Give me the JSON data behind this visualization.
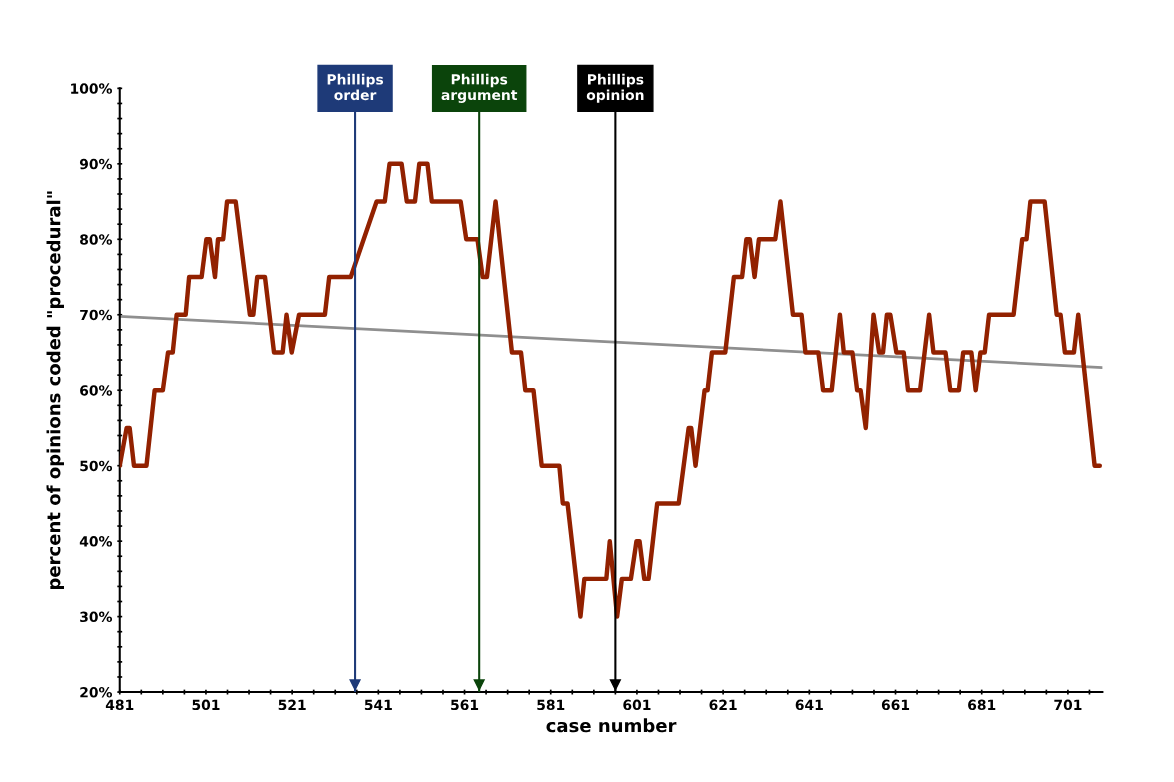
{
  "chart_data": {
    "type": "line",
    "xlabel": "case number",
    "ylabel": "percent of opinions coded \"procedural\"",
    "xlim": [
      481,
      709
    ],
    "ylim": [
      20,
      100
    ],
    "xticks": [
      481,
      {
        "value": 486,
        "label": null
      },
      {
        "value": 491,
        "label": null
      },
      {
        "value": 496,
        "label": null
      },
      501,
      {
        "value": 506,
        "label": null
      },
      {
        "value": 511,
        "label": null
      },
      {
        "value": 516,
        "label": null
      },
      521,
      {
        "value": 526,
        "label": null
      },
      {
        "value": 531,
        "label": null
      },
      {
        "value": 536,
        "label": null
      },
      541,
      {
        "value": 546,
        "label": null
      },
      {
        "value": 551,
        "label": null
      },
      {
        "value": 556,
        "label": null
      },
      561,
      {
        "value": 566,
        "label": null
      },
      {
        "value": 571,
        "label": null
      },
      {
        "value": 576,
        "label": null
      },
      581,
      {
        "value": 586,
        "label": null
      },
      {
        "value": 591,
        "label": null
      },
      {
        "value": 596,
        "label": null
      },
      601,
      {
        "value": 606,
        "label": null
      },
      {
        "value": 611,
        "label": null
      },
      {
        "value": 616,
        "label": null
      },
      621,
      {
        "value": 626,
        "label": null
      },
      {
        "value": 631,
        "label": null
      },
      {
        "value": 636,
        "label": null
      },
      641,
      {
        "value": 646,
        "label": null
      },
      {
        "value": 651,
        "label": null
      },
      {
        "value": 656,
        "label": null
      },
      661,
      {
        "value": 666,
        "label": null
      },
      {
        "value": 671,
        "label": null
      },
      {
        "value": 676,
        "label": null
      },
      681,
      {
        "value": 686,
        "label": null
      },
      {
        "value": 691,
        "label": null
      },
      {
        "value": 696,
        "label": null
      },
      701,
      {
        "value": 706,
        "label": null
      }
    ],
    "yticks": [
      {
        "value": 20,
        "label": "20%"
      },
      {
        "value": 22,
        "label": null
      },
      {
        "value": 24,
        "label": null
      },
      {
        "value": 26,
        "label": null
      },
      {
        "value": 28,
        "label": null
      },
      {
        "value": 30,
        "label": "30%"
      },
      {
        "value": 32,
        "label": null
      },
      {
        "value": 34,
        "label": null
      },
      {
        "value": 36,
        "label": null
      },
      {
        "value": 38,
        "label": null
      },
      {
        "value": 40,
        "label": "40%"
      },
      {
        "value": 42,
        "label": null
      },
      {
        "value": 44,
        "label": null
      },
      {
        "value": 46,
        "label": null
      },
      {
        "value": 48,
        "label": null
      },
      {
        "value": 50,
        "label": "50%"
      },
      {
        "value": 52,
        "label": null
      },
      {
        "value": 54,
        "label": null
      },
      {
        "value": 56,
        "label": null
      },
      {
        "value": 58,
        "label": null
      },
      {
        "value": 60,
        "label": "60%"
      },
      {
        "value": 62,
        "label": null
      },
      {
        "value": 64,
        "label": null
      },
      {
        "value": 66,
        "label": null
      },
      {
        "value": 68,
        "label": null
      },
      {
        "value": 70,
        "label": "70%"
      },
      {
        "value": 72,
        "label": null
      },
      {
        "value": 74,
        "label": null
      },
      {
        "value": 76,
        "label": null
      },
      {
        "value": 78,
        "label": null
      },
      {
        "value": 80,
        "label": "80%"
      },
      {
        "value": 82,
        "label": null
      },
      {
        "value": 84,
        "label": null
      },
      {
        "value": 86,
        "label": null
      },
      {
        "value": 88,
        "label": null
      },
      {
        "value": 90,
        "label": "90%"
      },
      {
        "value": 92,
        "label": null
      },
      {
        "value": 94,
        "label": null
      },
      {
        "value": 96,
        "label": null
      },
      {
        "value": 98,
        "label": null
      },
      {
        "value": 100,
        "label": "100%"
      }
    ],
    "grid": false,
    "legend": false,
    "marker": "none",
    "line_style": "solid",
    "series": [
      {
        "color": "#922100",
        "x": [
          481,
          482.6,
          483.3,
          484.3,
          487.2,
          489.1,
          491,
          492.2,
          493.3,
          494.2,
          496.3,
          497.1,
          500,
          501.1,
          501.9,
          503.1,
          503.8,
          505,
          505.9,
          507.9,
          511.2,
          512,
          512.9,
          514.7,
          516.8,
          518.8,
          519.7,
          520.9,
          522.6,
          528.6,
          529.6,
          534.6,
          540.6,
          542.5,
          543.6,
          546.4,
          547.6,
          549.5,
          550.5,
          552.4,
          553.4,
          560.1,
          561.4,
          564,
          565.2,
          566.2,
          568.2,
          572,
          574.1,
          575.1,
          577,
          578.9,
          583,
          583.8,
          584.9,
          587.9,
          588.8,
          593.9,
          594.7,
          596.4,
          597.5,
          599.6,
          600.9,
          601.6,
          602.7,
          603.7,
          605.7,
          610.7,
          613,
          613.6,
          614.6,
          616.7,
          617.4,
          618.4,
          621.5,
          623.5,
          625.4,
          626.4,
          627.2,
          628.3,
          629.3,
          633.1,
          634.3,
          637.2,
          639.2,
          640.1,
          643.1,
          644.2,
          646.2,
          648.1,
          649,
          651,
          652.1,
          652.9,
          654.1,
          655.9,
          657.2,
          658.1,
          659,
          659.8,
          661.2,
          662.9,
          663.9,
          666.7,
          668.8,
          669.8,
          672.6,
          673.7,
          675.7,
          676.7,
          678.6,
          679.6,
          680.7,
          681.7,
          682.7,
          688.4,
          690.4,
          691.4,
          692.3,
          695.6,
          698.4,
          699.3,
          700.3,
          702.4,
          703.4,
          707.2,
          708.4
        ],
        "values": [
          50,
          55,
          55,
          50,
          50,
          60,
          60,
          65,
          65,
          70,
          70,
          75,
          75,
          80,
          80,
          75,
          80,
          80,
          85,
          85,
          70,
          70,
          75,
          75,
          65,
          65,
          70,
          65,
          70,
          70,
          75,
          75,
          85,
          85,
          90,
          90,
          85,
          85,
          90,
          90,
          85,
          85,
          80,
          80,
          75,
          75,
          85,
          65,
          65,
          60,
          60,
          50,
          50,
          45,
          45,
          30,
          35,
          35,
          40,
          30,
          35,
          35,
          40,
          40,
          35,
          35,
          45,
          45,
          55,
          55,
          50,
          60,
          60,
          65,
          65,
          75,
          75,
          80,
          80,
          75,
          80,
          80,
          85,
          70,
          70,
          65,
          65,
          60,
          60,
          70,
          65,
          65,
          60,
          60,
          55,
          70,
          65,
          65,
          70,
          70,
          65,
          65,
          60,
          60,
          70,
          65,
          65,
          60,
          60,
          65,
          65,
          60,
          65,
          65,
          70,
          70,
          80,
          80,
          85,
          85,
          70,
          70,
          65,
          65,
          70,
          50,
          50
        ]
      },
      {
        "color": "#8f8f8f",
        "x": [
          481,
          709
        ],
        "values": [
          69.8,
          63.0
        ]
      }
    ],
    "ref_lines": [
      {
        "axis": "x",
        "value": 535.6,
        "label": "Phillips\norder",
        "color": "#1e3a78"
      },
      {
        "axis": "x",
        "value": 564.4,
        "label": "Phillips\nargument",
        "color": "#0b440b"
      },
      {
        "axis": "x",
        "value": 596,
        "label": "Phillips\nopinion",
        "color": "#000000"
      }
    ]
  }
}
